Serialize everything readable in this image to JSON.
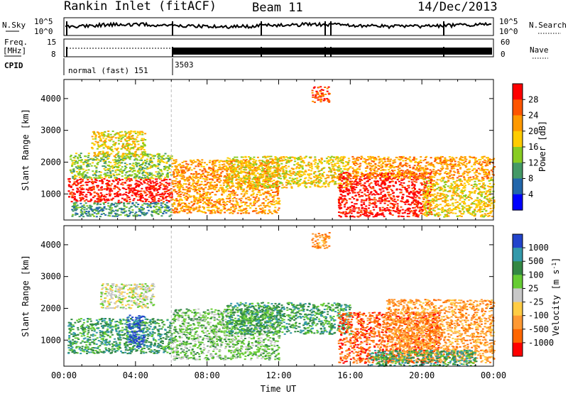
{
  "header": {
    "station": "Rankin Inlet (fitACF)",
    "beam": "Beam 11",
    "date": "14/Dec/2013"
  },
  "side_labels": {
    "nsky": "N.Sky",
    "nsearch": "N.Search",
    "freq": "Freq.",
    "mhz": "[MHz]",
    "nave": "Nave",
    "cpid": "CPID"
  },
  "noise_axis": {
    "top": "10^5",
    "bottom": "10^0"
  },
  "freq_axis": {
    "left_top": "15",
    "left_bottom": "8",
    "right_top": "60",
    "right_bottom": "0"
  },
  "cpid_segments": [
    {
      "label": "normal (fast) 151",
      "start_hour": 0,
      "end_hour": 6
    },
    {
      "label": "3503",
      "start_hour": 6,
      "end_hour": 24
    }
  ],
  "chart_data": [
    {
      "type": "heatmap",
      "name": "power",
      "ylabel": "Slant Range [km]",
      "ylim": [
        180,
        4600
      ],
      "yticks": [
        "1000",
        "2000",
        "3000",
        "4000"
      ],
      "xlim": [
        0,
        24
      ],
      "colorbar": {
        "label": "Power [dB]",
        "ticks": [
          "28",
          "24",
          "20",
          "16",
          "12",
          "8",
          "4"
        ],
        "colors": [
          "#ff0000",
          "#ff5500",
          "#ff9900",
          "#ffcc00",
          "#88cc22",
          "#449966",
          "#2266aa",
          "#0000ff"
        ]
      },
      "regions": [
        {
          "t0": 0.2,
          "t1": 6.0,
          "r0": 750,
          "r1": 1500,
          "level": 0
        },
        {
          "t0": 0.3,
          "t1": 6.0,
          "r0": 1500,
          "r1": 2300,
          "level": 4
        },
        {
          "t0": 1.5,
          "t1": 4.5,
          "r0": 2200,
          "r1": 3000,
          "level": 3
        },
        {
          "t0": 0.4,
          "t1": 6.0,
          "r0": 300,
          "r1": 750,
          "level": 5
        },
        {
          "t0": 6.0,
          "t1": 12.0,
          "r0": 400,
          "r1": 2100,
          "level": 2
        },
        {
          "t0": 9.0,
          "t1": 16.0,
          "r0": 1200,
          "r1": 2200,
          "level": 3
        },
        {
          "t0": 13.8,
          "t1": 14.8,
          "r0": 3900,
          "r1": 4400,
          "level": 1
        },
        {
          "t0": 15.3,
          "t1": 20.5,
          "r0": 300,
          "r1": 1700,
          "level": 0
        },
        {
          "t0": 16.0,
          "t1": 24.0,
          "r0": 1500,
          "r1": 2200,
          "level": 2
        },
        {
          "t0": 20.0,
          "t1": 24.0,
          "r0": 300,
          "r1": 1500,
          "level": 3
        }
      ]
    },
    {
      "type": "heatmap",
      "name": "velocity",
      "ylabel": "Slant Range [km]",
      "ylim": [
        180,
        4600
      ],
      "yticks": [
        "1000",
        "2000",
        "3000",
        "4000"
      ],
      "xlim": [
        0,
        24
      ],
      "xlabel": "Time UT",
      "xticks": [
        "00:00",
        "04:00",
        "08:00",
        "12:00",
        "16:00",
        "20:00",
        "00:00"
      ],
      "colorbar": {
        "label": "Velocity [m s",
        "label_sup": "-1",
        "label_end": "]",
        "ticks": [
          "1000",
          "500",
          "100",
          "25",
          "-25",
          "-100",
          "-500",
          "-1000"
        ],
        "colors": [
          "#2244cc",
          "#3399aa",
          "#338844",
          "#66cc33",
          "#c8c8c8",
          "#ffcc44",
          "#ff9933",
          "#ff6600",
          "#ff0000"
        ]
      },
      "regions": [
        {
          "t0": 0.2,
          "t1": 6.0,
          "r0": 600,
          "r1": 1700,
          "level": 2
        },
        {
          "t0": 2.0,
          "t1": 5.0,
          "r0": 2000,
          "r1": 2800,
          "level": 4
        },
        {
          "t0": 3.5,
          "t1": 4.5,
          "r0": 800,
          "r1": 1800,
          "level": 0
        },
        {
          "t0": 6.0,
          "t1": 12.0,
          "r0": 400,
          "r1": 2000,
          "level": 3
        },
        {
          "t0": 9.0,
          "t1": 16.0,
          "r0": 1200,
          "r1": 2200,
          "level": 2
        },
        {
          "t0": 13.8,
          "t1": 14.8,
          "r0": 3900,
          "r1": 4400,
          "level": 6
        },
        {
          "t0": 15.3,
          "t1": 21.0,
          "r0": 300,
          "r1": 1900,
          "level": 7
        },
        {
          "t0": 18.0,
          "t1": 24.0,
          "r0": 300,
          "r1": 2300,
          "level": 6
        },
        {
          "t0": 17.0,
          "t1": 23.0,
          "r0": 200,
          "r1": 700,
          "level": 2
        }
      ]
    }
  ]
}
